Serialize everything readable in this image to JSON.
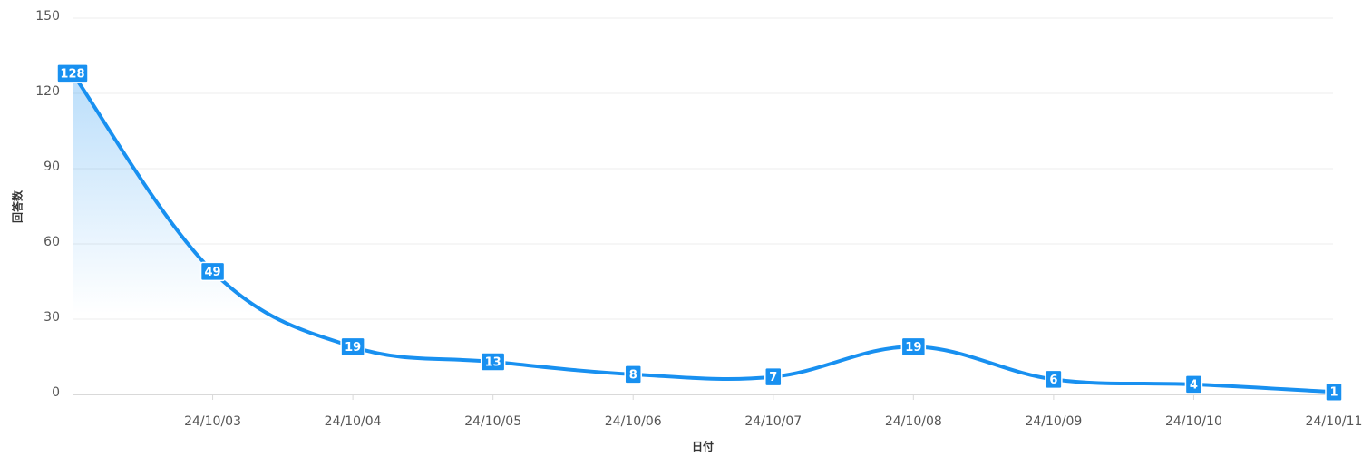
{
  "chart_data": {
    "type": "line",
    "x_label": "日付",
    "y_label": "回答数",
    "categories": [
      null,
      "24/10/03",
      "24/10/04",
      "24/10/05",
      "24/10/06",
      "24/10/07",
      "24/10/08",
      "24/10/09",
      "24/10/10",
      "24/10/11"
    ],
    "series": [
      {
        "name": "回答数",
        "color": "#1890f0",
        "values": [
          128,
          49,
          19,
          13,
          8,
          7,
          19,
          6,
          4,
          1
        ]
      }
    ],
    "ylim": [
      0,
      150
    ],
    "yticks": [
      0,
      30,
      60,
      90,
      120,
      150
    ],
    "grid": true
  }
}
